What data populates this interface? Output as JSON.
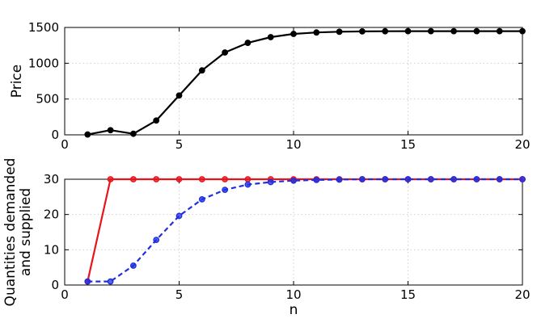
{
  "chart_data": [
    {
      "type": "line",
      "title": "",
      "xlabel": "",
      "ylabel": "Price",
      "xlim": [
        0,
        20
      ],
      "ylim": [
        0,
        1500
      ],
      "xticks": [
        0,
        5,
        10,
        15,
        20
      ],
      "yticks": [
        0,
        500,
        1000,
        1500
      ],
      "grid": true,
      "x": [
        1,
        2,
        3,
        4,
        5,
        6,
        7,
        8,
        9,
        10,
        11,
        12,
        13,
        14,
        15,
        16,
        17,
        18,
        19,
        20
      ],
      "series": [
        {
          "color": "#000000",
          "line_style": "solid",
          "marker": "filled-circle",
          "values": [
            5,
            65,
            15,
            200,
            550,
            900,
            1150,
            1285,
            1365,
            1410,
            1430,
            1440,
            1445,
            1447,
            1448,
            1448,
            1448,
            1448,
            1448,
            1448
          ]
        }
      ]
    },
    {
      "type": "line",
      "title": "",
      "xlabel": "n",
      "ylabel": "Quantities demanded and supplied",
      "ylabel_lines": [
        "Quantities demanded",
        "and supplied"
      ],
      "xlim": [
        0,
        20
      ],
      "ylim": [
        0,
        30
      ],
      "xticks": [
        0,
        5,
        10,
        15,
        20
      ],
      "yticks": [
        0,
        10,
        20,
        30
      ],
      "grid": true,
      "x": [
        1,
        2,
        3,
        4,
        5,
        6,
        7,
        8,
        9,
        10,
        11,
        12,
        13,
        14,
        15,
        16,
        17,
        18,
        19,
        20
      ],
      "series": [
        {
          "color": "#e8141b",
          "line_style": "solid",
          "marker": "circle",
          "values": [
            1,
            30,
            30,
            30,
            30,
            30,
            30,
            30,
            30,
            30,
            30,
            30,
            30,
            30,
            30,
            30,
            30,
            30,
            30,
            30
          ]
        },
        {
          "color": "#1f2fe0",
          "line_style": "dashed",
          "marker": "circle",
          "values": [
            1,
            1,
            5.5,
            12.8,
            19.6,
            24.3,
            27,
            28.5,
            29.2,
            29.6,
            29.8,
            29.9,
            30,
            30,
            30,
            30,
            30,
            30,
            30,
            30
          ]
        }
      ]
    }
  ]
}
